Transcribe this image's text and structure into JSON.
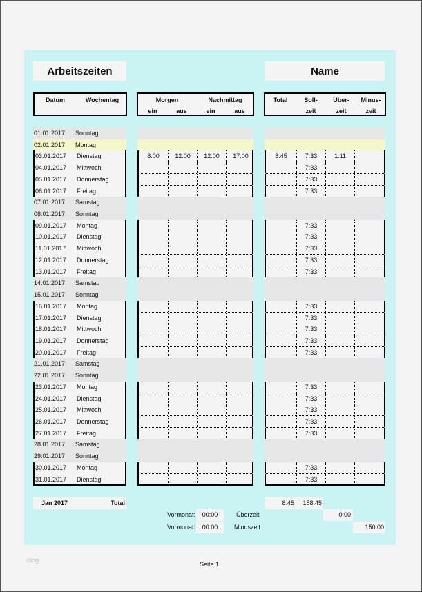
{
  "title": "Arbeitszeiten",
  "name": "Name",
  "headers": {
    "datum": "Datum",
    "wochentag": "Wochentag",
    "morgen": "Morgen",
    "nachmittag": "Nachmittag",
    "ein1": "ein",
    "aus1": "aus",
    "ein2": "ein",
    "aus2": "aus",
    "total": "Total",
    "soll1": "Soll-",
    "soll2": "zeit",
    "ueber1": "Über-",
    "ueber2": "zeit",
    "minus1": "Minus-",
    "minus2": "zeit"
  },
  "colors": {
    "background": "#c9f4f3",
    "weekend": "#e6e6e6",
    "holiday": "#f5f6c9",
    "weekday": "#f4f4f4"
  },
  "rows": [
    {
      "date": "01.01.2017",
      "day": "Sonntag",
      "type": "weekend"
    },
    {
      "date": "02.01.2017",
      "day": "Montag",
      "type": "holiday"
    },
    {
      "date": "03.01.2017",
      "day": "Dienstag",
      "type": "work",
      "ein1": "8:00",
      "aus1": "12:00",
      "ein2": "12:00",
      "aus2": "17:00",
      "total": "8:45",
      "soll": "7:33",
      "ueber": "1:11"
    },
    {
      "date": "04.01.2017",
      "day": "Mittwoch",
      "type": "work",
      "soll": "7:33"
    },
    {
      "date": "05.01.2017",
      "day": "Donnerstag",
      "type": "work",
      "soll": "7:33"
    },
    {
      "date": "06.01.2017",
      "day": "Freitag",
      "type": "work",
      "soll": "7:33"
    },
    {
      "date": "07.01.2017",
      "day": "Samstag",
      "type": "weekend"
    },
    {
      "date": "08.01.2017",
      "day": "Sonntag",
      "type": "weekend"
    },
    {
      "date": "09.01.2017",
      "day": "Montag",
      "type": "work",
      "soll": "7:33"
    },
    {
      "date": "10.01.2017",
      "day": "Dienstag",
      "type": "work",
      "soll": "7:33"
    },
    {
      "date": "11.01.2017",
      "day": "Mittwoch",
      "type": "work",
      "soll": "7:33"
    },
    {
      "date": "12.01.2017",
      "day": "Donnerstag",
      "type": "work",
      "soll": "7:33"
    },
    {
      "date": "13.01.2017",
      "day": "Freitag",
      "type": "work",
      "soll": "7:33"
    },
    {
      "date": "14.01.2017",
      "day": "Samstag",
      "type": "weekend"
    },
    {
      "date": "15.01.2017",
      "day": "Sonntag",
      "type": "weekend"
    },
    {
      "date": "16.01.2017",
      "day": "Montag",
      "type": "work",
      "soll": "7:33"
    },
    {
      "date": "17.01.2017",
      "day": "Dienstag",
      "type": "work",
      "soll": "7:33"
    },
    {
      "date": "18.01.2017",
      "day": "Mittwoch",
      "type": "work",
      "soll": "7:33"
    },
    {
      "date": "19.01.2017",
      "day": "Donnerstag",
      "type": "work",
      "soll": "7:33"
    },
    {
      "date": "20.01.2017",
      "day": "Freitag",
      "type": "work",
      "soll": "7:33"
    },
    {
      "date": "21.01.2017",
      "day": "Samstag",
      "type": "weekend"
    },
    {
      "date": "22.01.2017",
      "day": "Sonntag",
      "type": "weekend"
    },
    {
      "date": "23.01.2017",
      "day": "Montag",
      "type": "work",
      "soll": "7:33"
    },
    {
      "date": "24.01.2017",
      "day": "Dienstag",
      "type": "work",
      "soll": "7:33"
    },
    {
      "date": "25.01.2017",
      "day": "Mittwoch",
      "type": "work",
      "soll": "7:33"
    },
    {
      "date": "26.01.2017",
      "day": "Donnerstag",
      "type": "work",
      "soll": "7:33"
    },
    {
      "date": "27.01.2017",
      "day": "Freitag",
      "type": "work",
      "soll": "7:33"
    },
    {
      "date": "28.01.2017",
      "day": "Samstag",
      "type": "weekend"
    },
    {
      "date": "29.01.2017",
      "day": "Sonntag",
      "type": "weekend"
    },
    {
      "date": "30.01.2017",
      "day": "Montag",
      "type": "work",
      "soll": "7:33"
    },
    {
      "date": "31.01.2017",
      "day": "Dienstag",
      "type": "work",
      "soll": "7:33"
    }
  ],
  "summary": {
    "month": "Jan 2017",
    "total_label": "Total",
    "total": "8:45",
    "soll_total": "158:45",
    "vormonat_label": "Vormonat:",
    "vormonat_ueber": "00:00",
    "vormonat_minus": "00:00",
    "ueberzeit_label": "Überzeit",
    "ueberzeit": "0:00",
    "minuszeit_label": "Minuszeit",
    "minuszeit": "150:00"
  },
  "footer": {
    "page": "Seite 1",
    "watermark": "blog"
  }
}
